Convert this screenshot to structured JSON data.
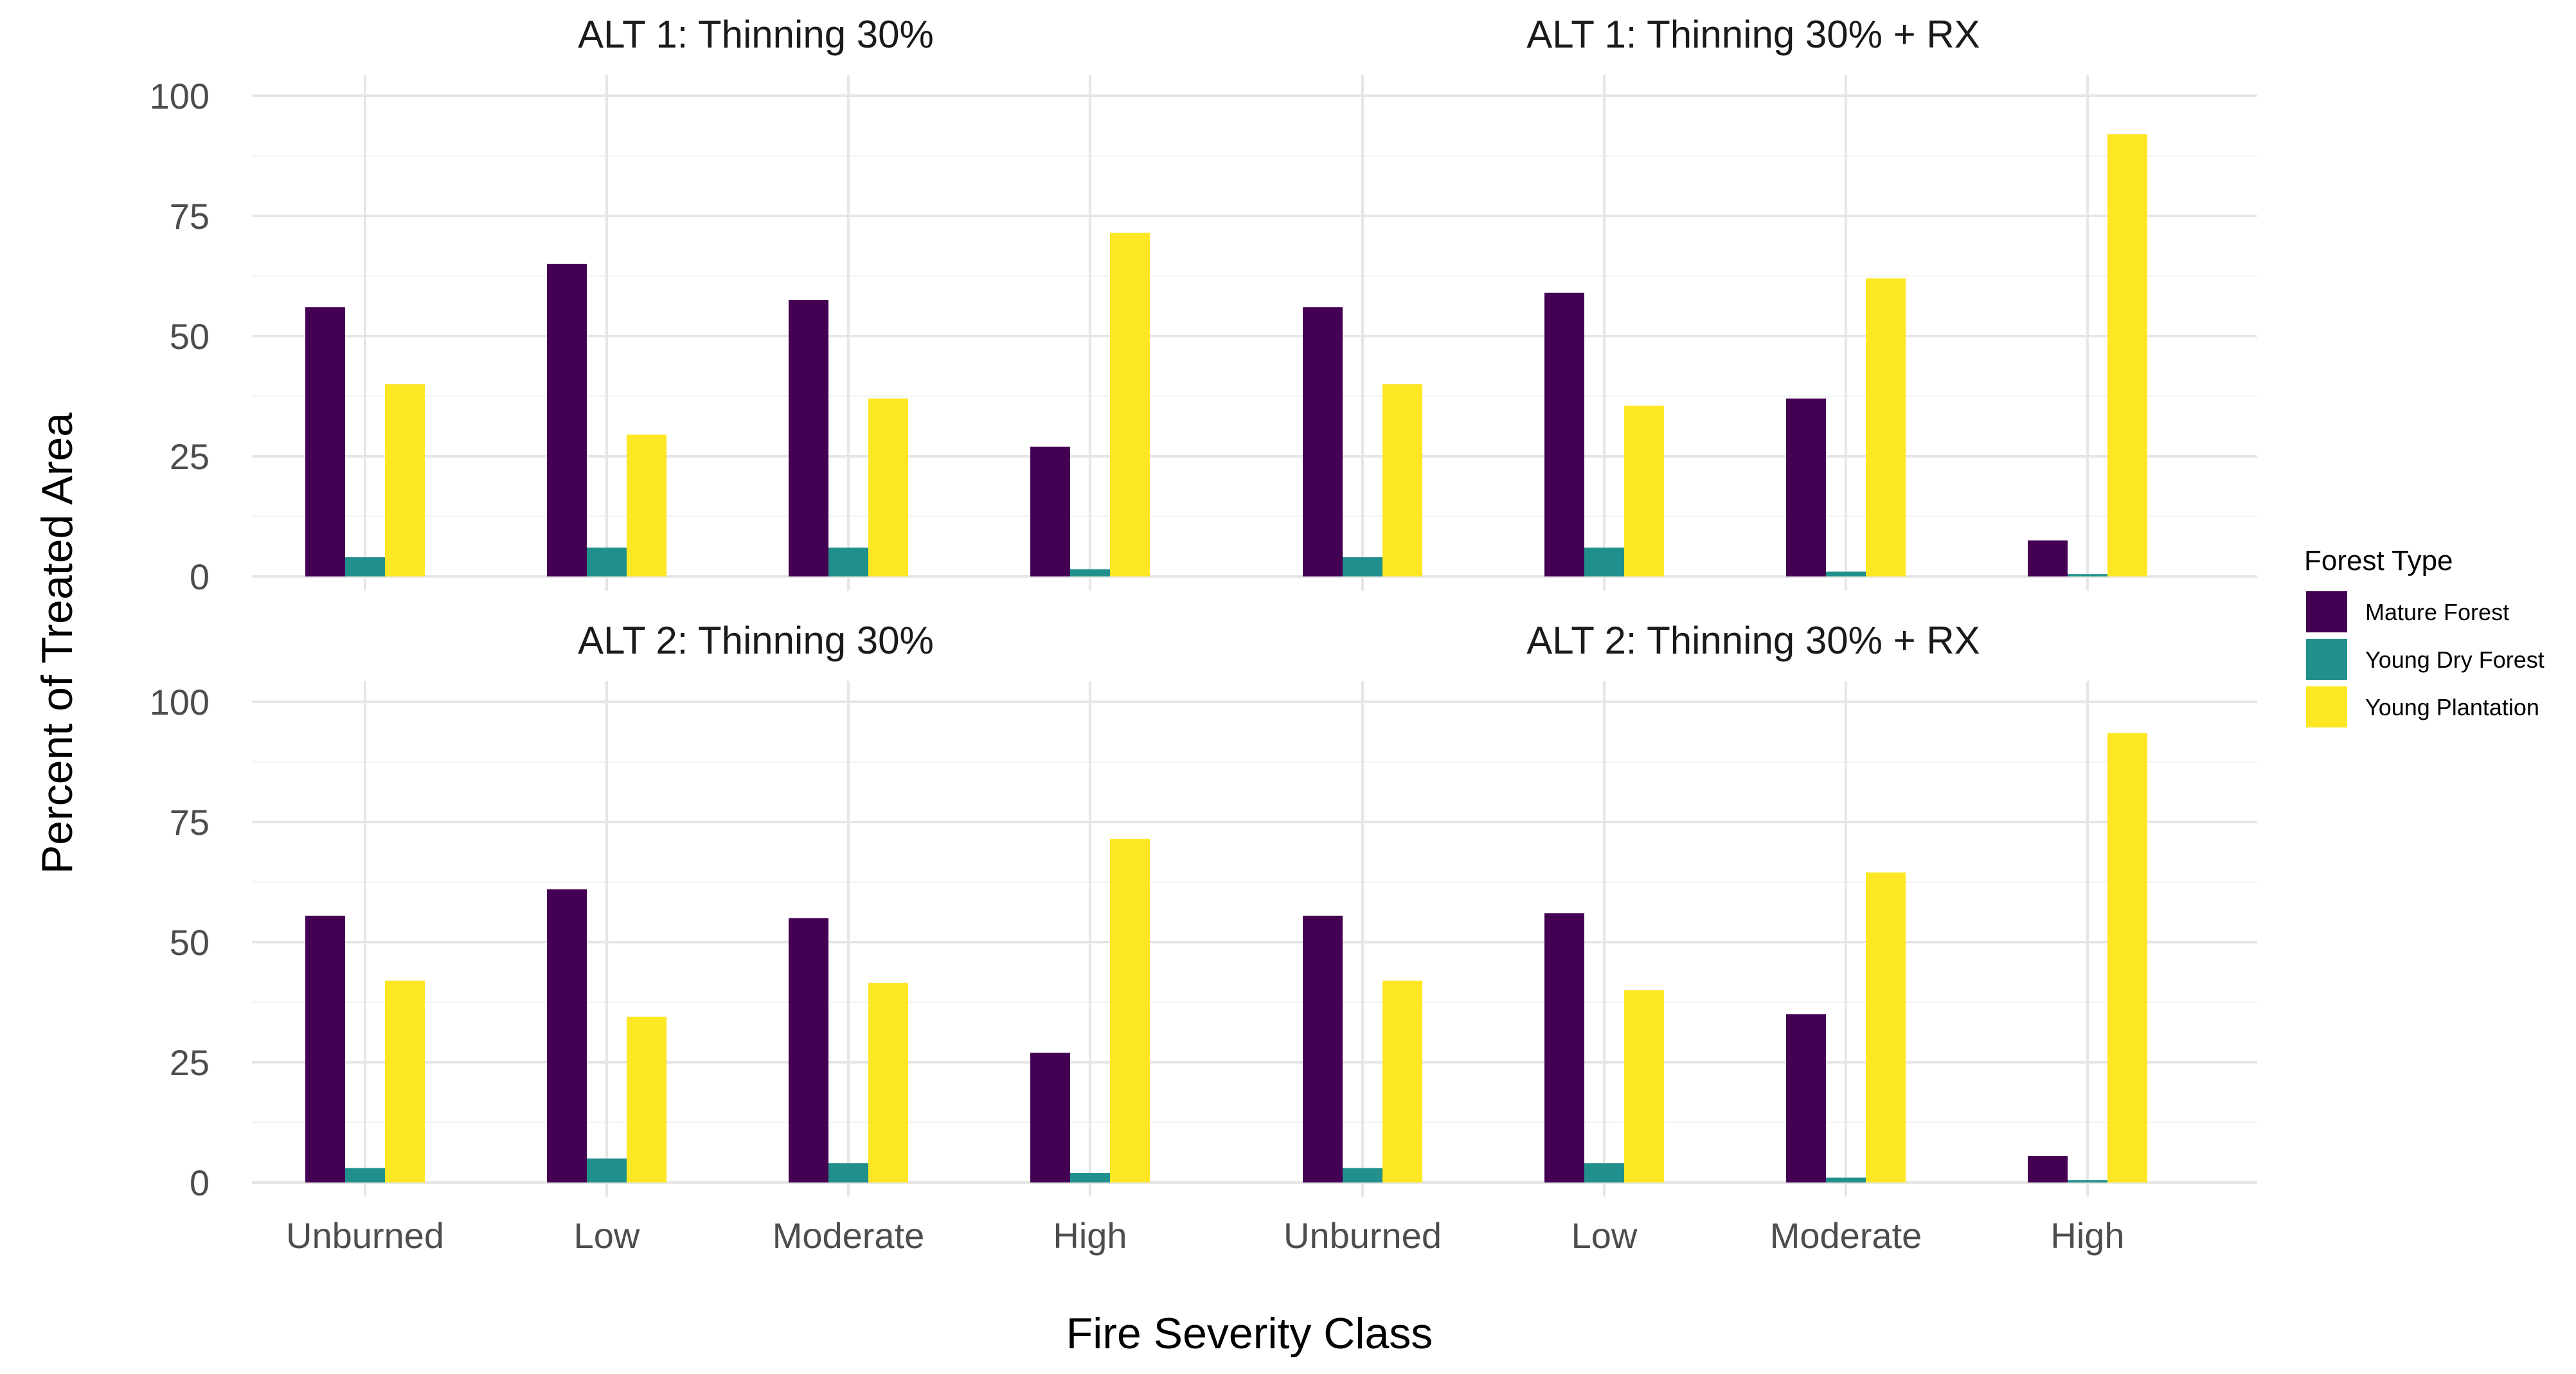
{
  "chart_data": {
    "type": "bar",
    "xlabel": "Fire Severity Class",
    "ylabel": "Percent of Treated Area",
    "categories": [
      "Unburned",
      "Low",
      "Moderate",
      "High"
    ],
    "ylim": [
      0,
      100
    ],
    "yticks": [
      0,
      25,
      50,
      75,
      100
    ],
    "grid": true,
    "legend": {
      "title": "Forest Type",
      "position": "right",
      "entries": [
        {
          "name": "Mature Forest",
          "color": "#440154"
        },
        {
          "name": "Young Dry Forest",
          "color": "#21908C"
        },
        {
          "name": "Young Plantation",
          "color": "#FDE725"
        }
      ]
    },
    "panels": [
      {
        "title": "ALT 1: Thinning 30%",
        "series": [
          {
            "name": "Mature Forest",
            "values": [
              56,
              65,
              57.5,
              27
            ]
          },
          {
            "name": "Young Dry Forest",
            "values": [
              4,
              6,
              6,
              1.5
            ]
          },
          {
            "name": "Young Plantation",
            "values": [
              40,
              29.5,
              37,
              71.5
            ]
          }
        ]
      },
      {
        "title": "ALT 1: Thinning 30% + RX",
        "series": [
          {
            "name": "Mature Forest",
            "values": [
              56,
              59,
              37,
              7.5
            ]
          },
          {
            "name": "Young Dry Forest",
            "values": [
              4,
              6,
              1,
              0.5
            ]
          },
          {
            "name": "Young Plantation",
            "values": [
              40,
              35.5,
              62,
              92
            ]
          }
        ]
      },
      {
        "title": "ALT 2: Thinning 30%",
        "series": [
          {
            "name": "Mature Forest",
            "values": [
              55.5,
              61,
              55,
              27
            ]
          },
          {
            "name": "Young Dry Forest",
            "values": [
              3,
              5,
              4,
              2
            ]
          },
          {
            "name": "Young Plantation",
            "values": [
              42,
              34.5,
              41.5,
              71.5
            ]
          }
        ]
      },
      {
        "title": "ALT 2: Thinning 30% + RX",
        "series": [
          {
            "name": "Mature Forest",
            "values": [
              55.5,
              56,
              35,
              5.5
            ]
          },
          {
            "name": "Young Dry Forest",
            "values": [
              3,
              4,
              1,
              0.5
            ]
          },
          {
            "name": "Young Plantation",
            "values": [
              42,
              40,
              64.5,
              93.5
            ]
          }
        ]
      }
    ]
  }
}
